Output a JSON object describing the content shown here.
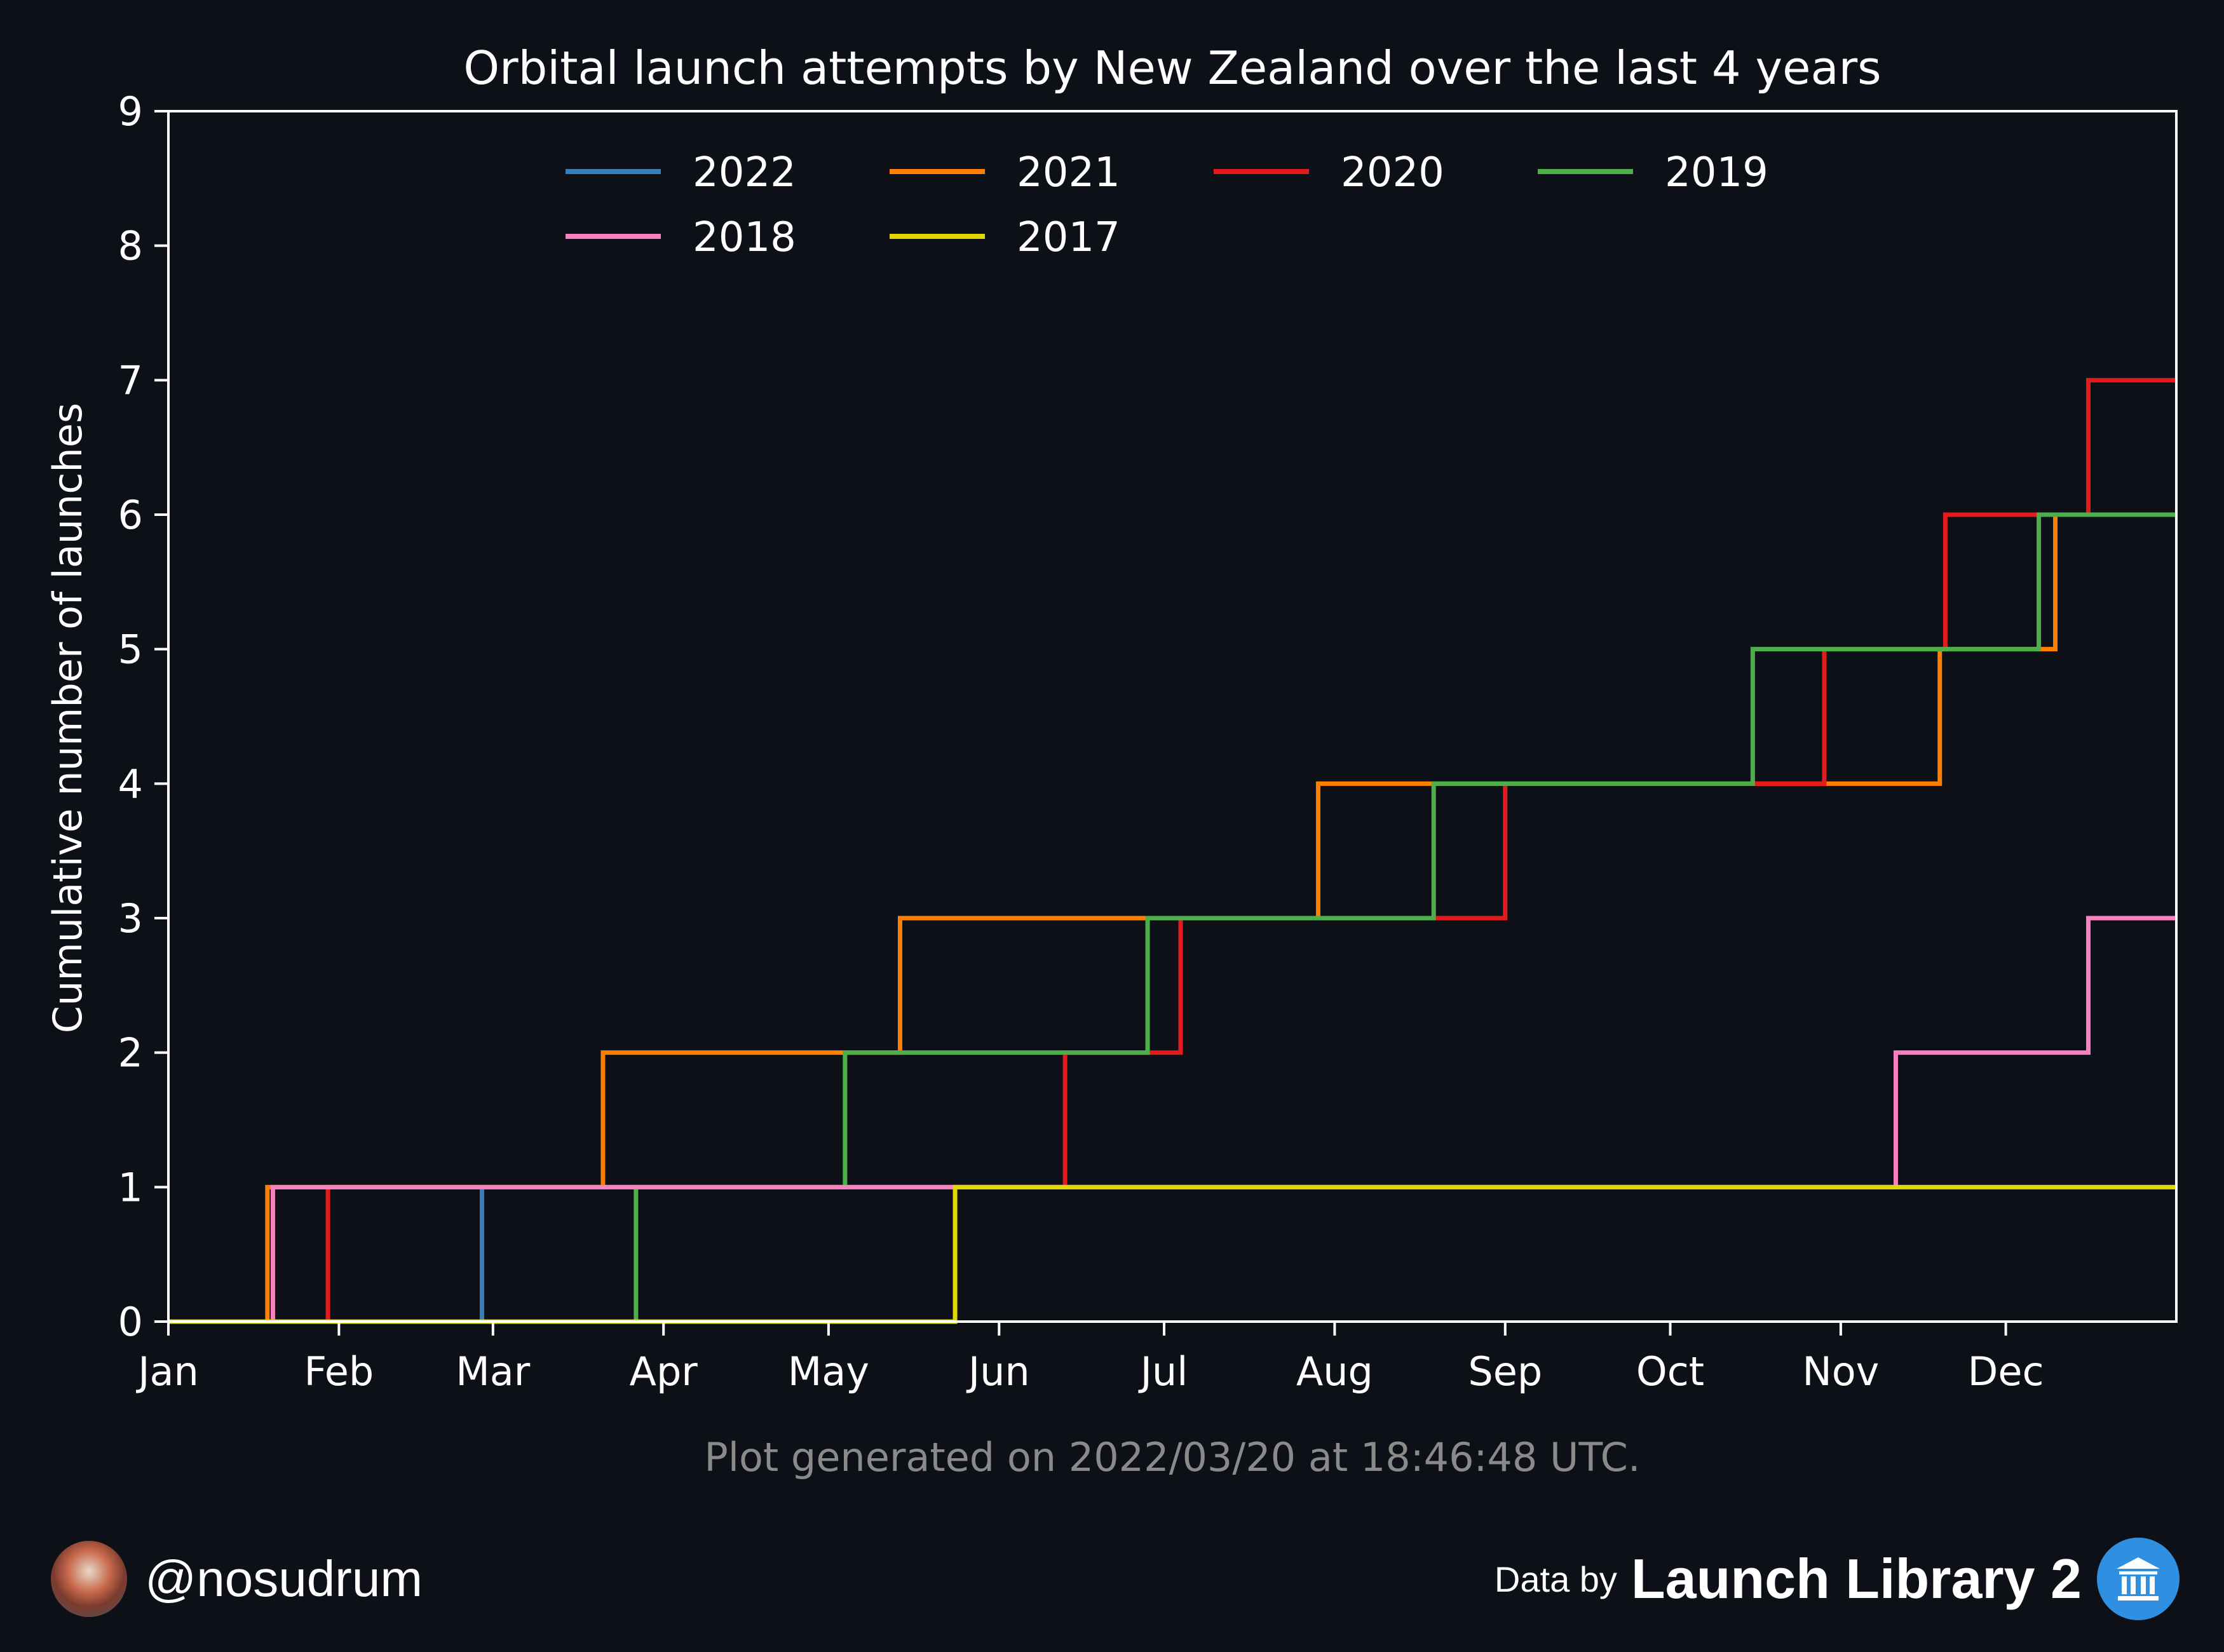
{
  "chart_data": {
    "type": "line",
    "step": true,
    "title": "Orbital launch attempts by New Zealand over the last 4 years",
    "xlabel": "",
    "ylabel": "Cumulative number of launches",
    "xlim": [
      0,
      365
    ],
    "ylim": [
      0,
      9
    ],
    "xticks": [
      {
        "label": "Jan",
        "day": 0
      },
      {
        "label": "Feb",
        "day": 31
      },
      {
        "label": "Mar",
        "day": 59
      },
      {
        "label": "Apr",
        "day": 90
      },
      {
        "label": "May",
        "day": 120
      },
      {
        "label": "Jun",
        "day": 151
      },
      {
        "label": "Jul",
        "day": 181
      },
      {
        "label": "Aug",
        "day": 212
      },
      {
        "label": "Sep",
        "day": 243
      },
      {
        "label": "Oct",
        "day": 273
      },
      {
        "label": "Nov",
        "day": 304
      },
      {
        "label": "Dec",
        "day": 334
      }
    ],
    "yticks": [
      0,
      1,
      2,
      3,
      4,
      5,
      6,
      7,
      8,
      9
    ],
    "legend_position": "top-center",
    "series": [
      {
        "name": "2022",
        "color": "#377eb8",
        "launch_days": [
          57
        ]
      },
      {
        "name": "2021",
        "color": "#ff7f00",
        "launch_days": [
          18,
          79,
          133,
          209,
          322,
          343
        ]
      },
      {
        "name": "2020",
        "color": "#e41a1c",
        "launch_days": [
          29,
          163,
          184,
          243,
          301,
          323,
          349
        ]
      },
      {
        "name": "2019",
        "color": "#4daf4a",
        "launch_days": [
          85,
          123,
          178,
          230,
          288,
          340
        ]
      },
      {
        "name": "2018",
        "color": "#f781bf",
        "launch_days": [
          19,
          314,
          349
        ]
      },
      {
        "name": "2017",
        "color": "#e0d800",
        "launch_days": [
          143
        ]
      }
    ]
  },
  "footer": {
    "generated_text": "Plot generated on 2022/03/20 at 18:46:48 UTC.",
    "author_handle": "@nosudrum",
    "credit_prefix": "Data by",
    "credit_name": "Launch Library 2"
  },
  "colors": {
    "background": "#0d1017",
    "axes": "#ffffff",
    "generated_text": "#8a8a8a",
    "library_icon": "#2f8fe0"
  },
  "icons": {
    "author": "avatar-icon",
    "library": "library-building-icon"
  }
}
